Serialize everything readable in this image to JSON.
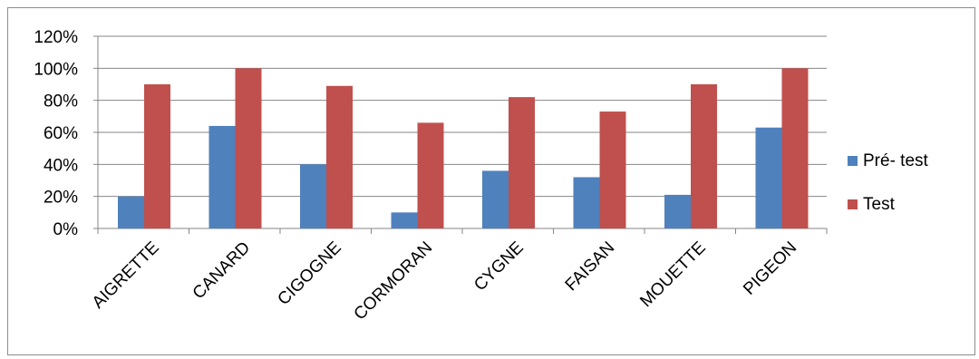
{
  "chart_data": {
    "type": "bar",
    "categories": [
      "AIGRETTE",
      "CANARD",
      "CIGOGNE",
      "CORMORAN",
      "CYGNE",
      "FAISAN",
      "MOUETTE",
      "PIGEON"
    ],
    "series": [
      {
        "name": "Pré- test",
        "color": "#4f81bd",
        "values": [
          20,
          64,
          40,
          10,
          36,
          32,
          21,
          63
        ]
      },
      {
        "name": "Test",
        "color": "#c0504d",
        "values": [
          90,
          100,
          89,
          66,
          82,
          73,
          90,
          100
        ]
      }
    ],
    "ylim": [
      0,
      120
    ],
    "yticks": [
      "0%",
      "20%",
      "40%",
      "60%",
      "80%",
      "100%",
      "120%"
    ],
    "ytick_values": [
      0,
      20,
      40,
      60,
      80,
      100,
      120
    ],
    "grid": true,
    "legend_position": "right",
    "title": "",
    "xlabel": "",
    "ylabel": ""
  }
}
